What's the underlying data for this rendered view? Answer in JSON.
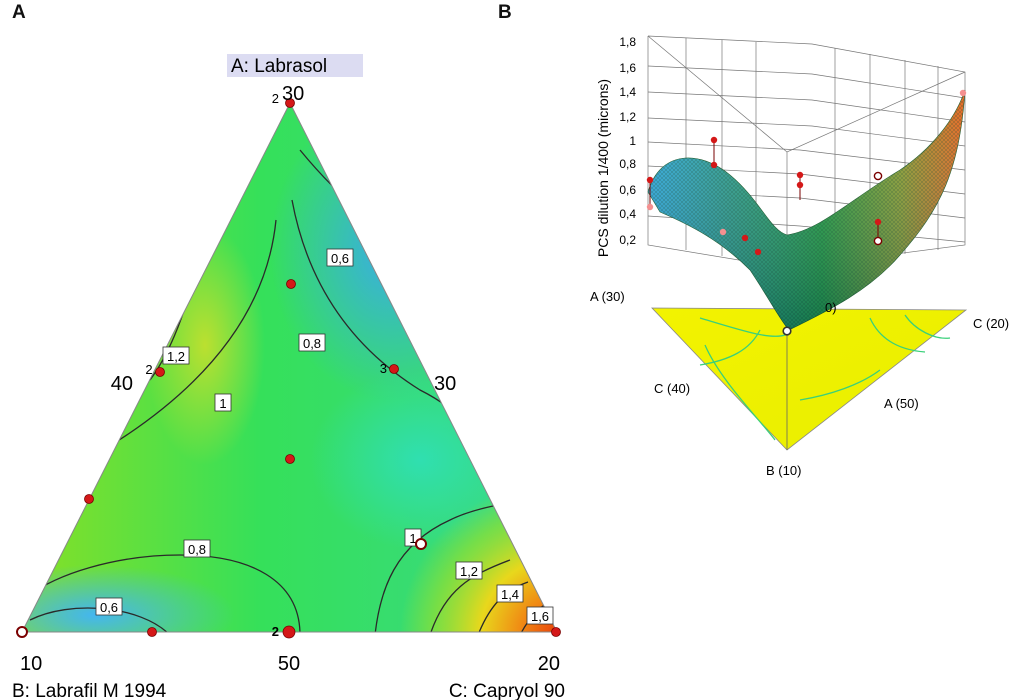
{
  "panels": {
    "a": {
      "letter": "A",
      "vertex_top_label": "A: Labrasol",
      "vertex_left_label": "B: Labrafil M 1994",
      "vertex_right_label": "C: Capryol 90",
      "vertex_top_value": "30",
      "vertex_left_value": "10",
      "vertex_right_value": "20",
      "tick_bottom_mid": "50",
      "tick_left_side": "40",
      "tick_right_side": "30",
      "replicate_top": "2",
      "replicate_left_side": "2",
      "replicate_right_side": "3",
      "replicate_bottom_mid": "2",
      "contour_labels": [
        "0,6",
        "0,8",
        "1",
        "1,2",
        "0,8",
        "0,6",
        "1",
        "1,2",
        "1,4",
        "1,6"
      ]
    },
    "b": {
      "letter": "B",
      "z_axis_label": "PCS dilution 1/400 (microns)",
      "z_ticks": [
        "1,8",
        "1,6",
        "1,4",
        "1,2",
        "1",
        "0,8",
        "0,6",
        "0,4",
        "0,2"
      ],
      "corner_a30": "A (30)",
      "corner_c20": "C (20)",
      "corner_c40": "C (40)",
      "corner_a50": "A (50)",
      "corner_b10": "B (10)",
      "partial_label": "0)"
    }
  },
  "chart_data": [
    {
      "type": "heatmap",
      "subtype": "ternary contour plot",
      "components": [
        "A: Labrasol",
        "B: Labrafil M 1994",
        "C: Capryol 90"
      ],
      "vertex_values": {
        "A": 30,
        "B": 10,
        "C": 20
      },
      "contour_levels": [
        0.6,
        0.8,
        1,
        1.2,
        1.4,
        1.6
      ],
      "colors": {
        "low": "#3aa8f0",
        "mid": "#2fe05a",
        "high": "#f05a14"
      },
      "design_points": [
        {
          "position": "top vertex",
          "replicates": 2
        },
        {
          "position": "left edge upper",
          "replicates": 2
        },
        {
          "position": "right edge mid",
          "replicates": 3
        },
        {
          "position": "bottom edge mid",
          "replicates": 2
        },
        {
          "position": "left vertex",
          "replicates": 1
        },
        {
          "position": "right vertex",
          "replicates": 1
        },
        {
          "position": "interior upper",
          "replicates": 1
        },
        {
          "position": "centroid",
          "replicates": 1
        },
        {
          "position": "left edge lower",
          "replicates": 1
        },
        {
          "position": "bottom edge left",
          "replicates": 1
        },
        {
          "position": "interior lower right",
          "replicates": 1
        }
      ]
    },
    {
      "type": "area",
      "subtype": "3D response surface",
      "zlabel": "PCS dilution 1/400 (microns)",
      "zlim": [
        0,
        1.8
      ],
      "zticks": [
        0.2,
        0.4,
        0.6,
        0.8,
        1,
        1.2,
        1.4,
        1.6,
        1.8
      ],
      "corners": [
        "A (30)",
        "C (20)",
        "C (40)",
        "A (50)",
        "B (10)"
      ],
      "colors": {
        "low": "#2aa0d8",
        "mid": "#1f9a3a",
        "high": "#e8621a",
        "base": "#f0f000"
      }
    }
  ]
}
